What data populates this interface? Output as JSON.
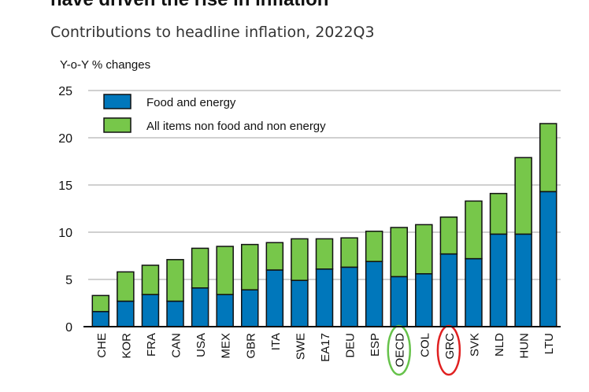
{
  "chart_data": {
    "type": "bar",
    "stacked": true,
    "title": "have driven the rise in inflation",
    "subtitle": "Contributions to headline inflation, 2022Q3",
    "ylabel": "Y-o-Y % changes",
    "xlabel": "",
    "ylim": [
      0,
      25
    ],
    "yticks": [
      0,
      5,
      10,
      15,
      20,
      25
    ],
    "grid": true,
    "legend_placement": "top-left",
    "categories": [
      "CHE",
      "KOR",
      "FRA",
      "CAN",
      "USA",
      "MEX",
      "GBR",
      "ITA",
      "SWE",
      "EA17",
      "DEU",
      "ESP",
      "OECD",
      "COL",
      "GRC",
      "SVK",
      "NLD",
      "HUN",
      "LTU"
    ],
    "series": [
      {
        "name": "Food and energy",
        "color": "#0077bb",
        "values": [
          1.6,
          2.7,
          3.4,
          2.7,
          4.1,
          3.4,
          3.9,
          6.0,
          4.9,
          6.1,
          6.3,
          6.9,
          5.3,
          5.6,
          7.7,
          7.2,
          9.8,
          9.8,
          14.3
        ]
      },
      {
        "name": "All items non food and non energy",
        "color": "#77c74a",
        "values": [
          1.7,
          3.1,
          3.1,
          4.4,
          4.2,
          5.1,
          4.8,
          2.9,
          4.4,
          3.2,
          3.1,
          3.2,
          5.2,
          5.2,
          3.9,
          6.1,
          4.3,
          8.1,
          7.2
        ]
      }
    ],
    "highlighted": [
      {
        "category": "OECD",
        "color": "#66c24a"
      },
      {
        "category": "GRC",
        "color": "#e02020"
      }
    ]
  }
}
